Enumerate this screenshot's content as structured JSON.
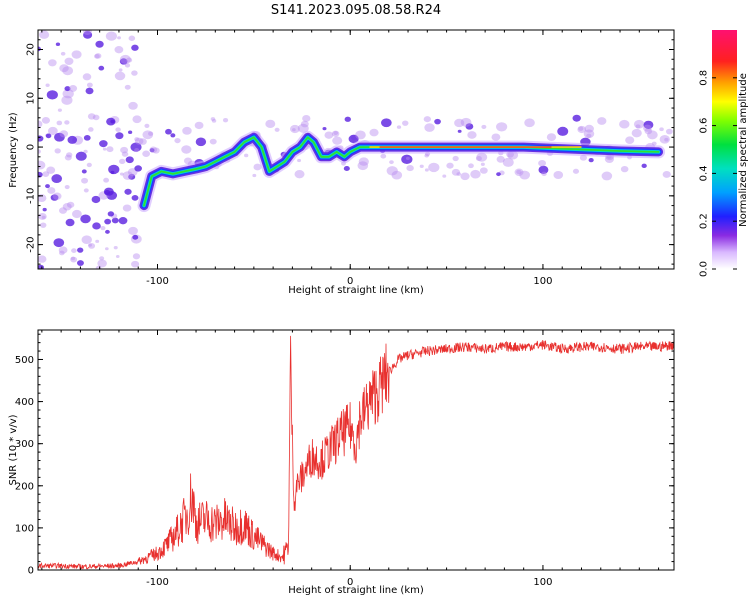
{
  "figure_title": "S141.2023.095.08.58.R24",
  "colors": {
    "snr_line": "#e8302e",
    "spectrogram_noise": "#b98cf0",
    "spectrogram_core": "#5a1fe0",
    "background": "#ffffff"
  },
  "chart_data": [
    {
      "type": "heatmap",
      "title": "S141.2023.095.08.58.R24",
      "xlabel": "Height of straight line (km)",
      "ylabel": "Frequency (Hz)",
      "xlim": [
        -162,
        168
      ],
      "ylim": [
        -25,
        24
      ],
      "x_ticks": [
        -100,
        0,
        100
      ],
      "x_tick_labels": [
        "-100",
        "0",
        "100"
      ],
      "y_ticks": [
        -20,
        -10,
        0,
        10,
        20
      ],
      "y_tick_labels": [
        "-20",
        "-10",
        "0",
        "10",
        "20"
      ],
      "ridge": {
        "x": [
          -107,
          -103,
          -98,
          -92,
          -86,
          -80,
          -75,
          -70,
          -65,
          -60,
          -55,
          -50,
          -46,
          -42,
          -38,
          -34,
          -30,
          -26,
          -22,
          -19,
          -15,
          -11,
          -7,
          -3,
          0,
          5,
          10,
          30,
          60,
          90,
          120,
          140,
          160
        ],
        "y": [
          -12,
          -6,
          -5,
          -5.5,
          -5,
          -4.5,
          -4,
          -3,
          -2,
          -1,
          1,
          2,
          0,
          -5,
          -4,
          -3,
          -1,
          0,
          2,
          1,
          -2,
          -2,
          -1,
          -2,
          -1,
          0,
          0,
          0,
          0,
          0,
          -0.5,
          -0.8,
          -1
        ]
      },
      "colorbar": {
        "label": "Normalized spectral amplitude",
        "range": [
          0,
          1
        ],
        "ticks": [
          0,
          0.2,
          0.4,
          0.6,
          0.8
        ],
        "tick_labels": [
          "0.0",
          "0.2",
          "0.4",
          "0.6",
          "0.8"
        ],
        "colormap": "rainbow"
      }
    },
    {
      "type": "line",
      "xlabel": "Height of straight line (km)",
      "ylabel": "SNR (10 * v/v)",
      "xlim": [
        -162,
        168
      ],
      "ylim": [
        0,
        570
      ],
      "x_ticks": [
        -100,
        0,
        100
      ],
      "x_tick_labels": [
        "-100",
        "0",
        "100"
      ],
      "y_ticks": [
        0,
        100,
        200,
        300,
        400,
        500
      ],
      "y_tick_labels": [
        "0",
        "100",
        "200",
        "300",
        "400",
        "500"
      ],
      "x": [
        -162,
        -150,
        -140,
        -130,
        -120,
        -110,
        -100,
        -95,
        -90,
        -85,
        -82,
        -80,
        -75,
        -70,
        -65,
        -60,
        -55,
        -50,
        -45,
        -40,
        -35,
        -32,
        -31,
        -30,
        -29,
        -28,
        -25,
        -20,
        -15,
        -10,
        -5,
        0,
        3,
        5,
        8,
        10,
        15,
        20,
        25,
        30,
        40,
        50,
        60,
        70,
        80,
        90,
        100,
        110,
        120,
        130,
        140,
        150,
        160,
        168
      ],
      "values": [
        10,
        10,
        8,
        9,
        10,
        20,
        40,
        60,
        90,
        130,
        180,
        110,
        120,
        110,
        120,
        100,
        110,
        80,
        60,
        40,
        30,
        60,
        510,
        300,
        150,
        200,
        220,
        270,
        260,
        290,
        320,
        340,
        300,
        360,
        380,
        400,
        430,
        470,
        500,
        510,
        520,
        525,
        530,
        525,
        530,
        530,
        535,
        525,
        530,
        530,
        525,
        530,
        530,
        535
      ]
    }
  ]
}
